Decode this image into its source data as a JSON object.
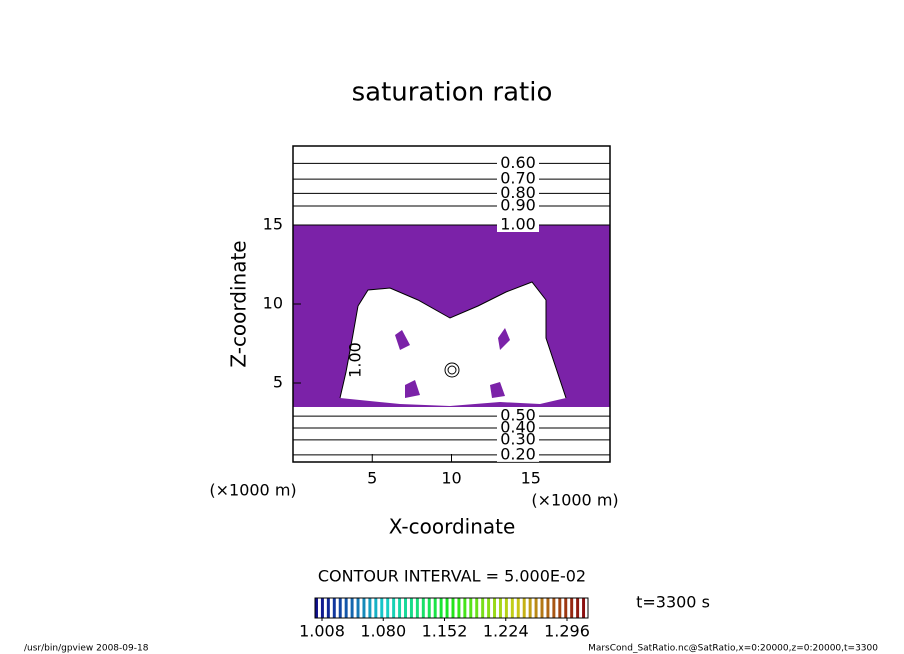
{
  "chart_data": {
    "type": "contour",
    "title": "saturation ratio",
    "xlabel": "X-coordinate",
    "ylabel": "Z-coordinate",
    "x_unit": "(×1000 m)",
    "y_unit": "(×1000 m)",
    "xlim": [
      0,
      20
    ],
    "ylim": [
      0,
      20
    ],
    "xticks": [
      5,
      10,
      15
    ],
    "yticks": [
      5,
      10,
      15
    ],
    "fill_color": "#7b22a8",
    "contour_lines": {
      "levels": [
        {
          "value": 0.6,
          "label": "0.60"
        },
        {
          "value": 0.7,
          "label": "0.70"
        },
        {
          "value": 0.8,
          "label": "0.80"
        },
        {
          "value": 0.9,
          "label": "0.90"
        },
        {
          "value": 1.0,
          "label": "1.00"
        },
        {
          "value": 0.5,
          "label": "0.50"
        },
        {
          "value": 0.4,
          "label": "0.40"
        },
        {
          "value": 0.3,
          "label": "0.30"
        },
        {
          "value": 0.2,
          "label": "0.20"
        }
      ],
      "z": [
        18.9,
        17.9,
        17.0,
        16.2,
        15.0,
        2.9,
        2.15,
        1.4,
        0.45
      ]
    },
    "contour_interval": "CONTOUR INTERVAL = 5.000E-02",
    "colorbar_ticks": [
      {
        "value": 1.008,
        "label": "1.008"
      },
      {
        "value": 1.08,
        "label": "1.080"
      },
      {
        "value": 1.152,
        "label": "1.152"
      },
      {
        "value": 1.224,
        "label": "1.224"
      },
      {
        "value": 1.296,
        "label": "1.296"
      }
    ],
    "time_label": "t=3300 s",
    "footer_left": "/usr/bin/gpview  2008-09-18",
    "footer_right": "MarsCond_SatRatio.nc@SatRatio,x=0:20000,z=0:20000,t=3300"
  }
}
